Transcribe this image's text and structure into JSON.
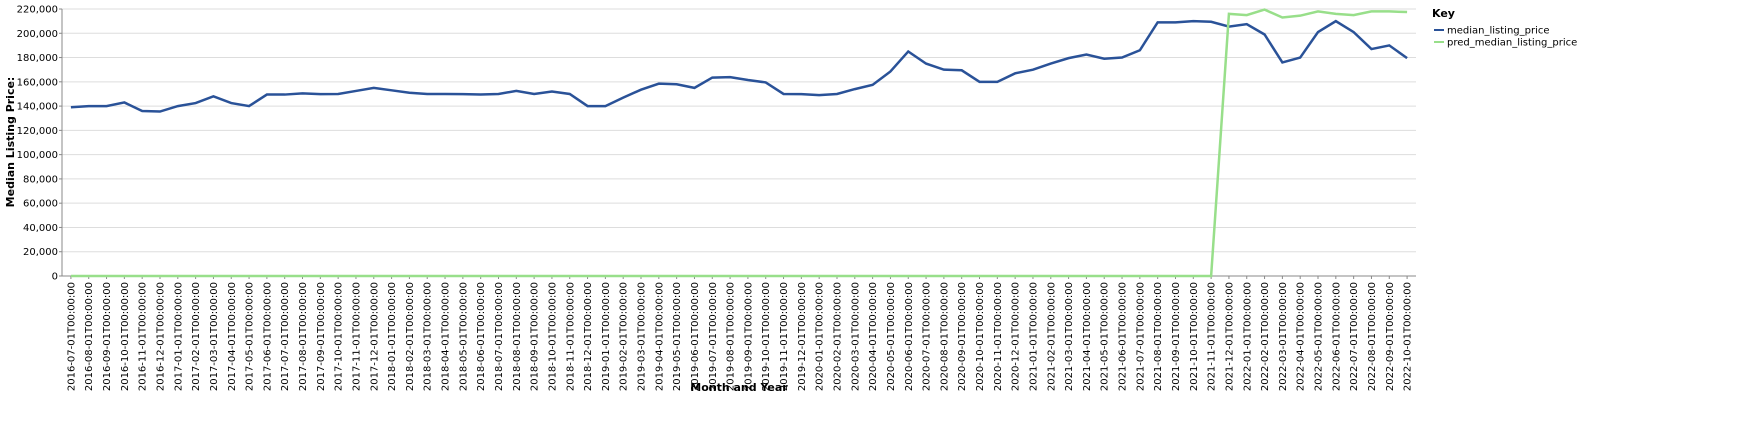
{
  "chart_data": {
    "type": "line",
    "x_label": "Month and Year",
    "y_label": "Median Listing Price:",
    "legend_title": "Key",
    "legend_position": "right",
    "grid": true,
    "categories": [
      "2016-07-01T00:00:00",
      "2016-08-01T00:00:00",
      "2016-09-01T00:00:00",
      "2016-10-01T00:00:00",
      "2016-11-01T00:00:00",
      "2016-12-01T00:00:00",
      "2017-01-01T00:00:00",
      "2017-02-01T00:00:00",
      "2017-03-01T00:00:00",
      "2017-04-01T00:00:00",
      "2017-05-01T00:00:00",
      "2017-06-01T00:00:00",
      "2017-07-01T00:00:00",
      "2017-08-01T00:00:00",
      "2017-09-01T00:00:00",
      "2017-10-01T00:00:00",
      "2017-11-01T00:00:00",
      "2017-12-01T00:00:00",
      "2018-01-01T00:00:00",
      "2018-02-01T00:00:00",
      "2018-03-01T00:00:00",
      "2018-04-01T00:00:00",
      "2018-05-01T00:00:00",
      "2018-06-01T00:00:00",
      "2018-07-01T00:00:00",
      "2018-08-01T00:00:00",
      "2018-09-01T00:00:00",
      "2018-10-01T00:00:00",
      "2018-11-01T00:00:00",
      "2018-12-01T00:00:00",
      "2019-01-01T00:00:00",
      "2019-02-01T00:00:00",
      "2019-03-01T00:00:00",
      "2019-04-01T00:00:00",
      "2019-05-01T00:00:00",
      "2019-06-01T00:00:00",
      "2019-07-01T00:00:00",
      "2019-08-01T00:00:00",
      "2019-09-01T00:00:00",
      "2019-10-01T00:00:00",
      "2019-11-01T00:00:00",
      "2019-12-01T00:00:00",
      "2020-01-01T00:00:00",
      "2020-02-01T00:00:00",
      "2020-03-01T00:00:00",
      "2020-04-01T00:00:00",
      "2020-05-01T00:00:00",
      "2020-06-01T00:00:00",
      "2020-07-01T00:00:00",
      "2020-08-01T00:00:00",
      "2020-09-01T00:00:00",
      "2020-10-01T00:00:00",
      "2020-11-01T00:00:00",
      "2020-12-01T00:00:00",
      "2021-01-01T00:00:00",
      "2021-02-01T00:00:00",
      "2021-03-01T00:00:00",
      "2021-04-01T00:00:00",
      "2021-05-01T00:00:00",
      "2021-06-01T00:00:00",
      "2021-07-01T00:00:00",
      "2021-08-01T00:00:00",
      "2021-09-01T00:00:00",
      "2021-10-01T00:00:00",
      "2021-11-01T00:00:00",
      "2021-12-01T00:00:00",
      "2022-01-01T00:00:00",
      "2022-02-01T00:00:00",
      "2022-03-01T00:00:00",
      "2022-04-01T00:00:00",
      "2022-05-01T00:00:00",
      "2022-06-01T00:00:00",
      "2022-07-01T00:00:00",
      "2022-08-01T00:00:00",
      "2022-09-01T00:00:00",
      "2022-10-01T00:00:00"
    ],
    "series": [
      {
        "name": "median_listing_price",
        "color": "#2a5298",
        "values": [
          139000,
          140000,
          140000,
          143000,
          136000,
          135500,
          140000,
          142500,
          148000,
          142500,
          140000,
          149500,
          149500,
          150500,
          149900,
          150000,
          152500,
          155000,
          153000,
          151000,
          150000,
          150000,
          149900,
          149500,
          150000,
          152500,
          150000,
          152000,
          150000,
          140000,
          140000,
          147000,
          153500,
          158500,
          158000,
          155000,
          163500,
          163900,
          161500,
          159500,
          150000,
          149900,
          149000,
          150000,
          154000,
          157500,
          168500,
          185000,
          175000,
          170000,
          169500,
          160000,
          160000,
          167000,
          170000,
          175000,
          179500,
          182500,
          179000,
          180000,
          186000,
          209000,
          209000,
          210000,
          209500,
          205500,
          207500,
          199000,
          176000,
          180000,
          201000,
          210000,
          201000,
          187000,
          190000,
          179500
        ]
      },
      {
        "name": "pred_median_listing_price",
        "color": "#98df8a",
        "values": [
          0,
          0,
          0,
          0,
          0,
          0,
          0,
          0,
          0,
          0,
          0,
          0,
          0,
          0,
          0,
          0,
          0,
          0,
          0,
          0,
          0,
          0,
          0,
          0,
          0,
          0,
          0,
          0,
          0,
          0,
          0,
          0,
          0,
          0,
          0,
          0,
          0,
          0,
          0,
          0,
          0,
          0,
          0,
          0,
          0,
          0,
          0,
          0,
          0,
          0,
          0,
          0,
          0,
          0,
          0,
          0,
          0,
          0,
          0,
          0,
          0,
          0,
          0,
          0,
          0,
          216000,
          215000,
          219500,
          213000,
          214500,
          218000,
          216000,
          215000,
          218000,
          218000,
          217500
        ]
      }
    ],
    "ylim": [
      0,
      220000
    ],
    "yticks": [
      0,
      {
        "value": 20000,
        "label": "20,000"
      },
      {
        "value": 40000,
        "label": "40,000"
      },
      {
        "value": 60000,
        "label": "60,000"
      },
      {
        "value": 80000,
        "label": "80,000"
      },
      {
        "value": 100000,
        "label": "100,000"
      },
      {
        "value": 120000,
        "label": "120,000"
      },
      {
        "value": 140000,
        "label": "140,000"
      },
      {
        "value": 160000,
        "label": "160,000"
      },
      {
        "value": 180000,
        "label": "180,000"
      },
      {
        "value": 200000,
        "label": "200,000"
      },
      {
        "value": 220000,
        "label": "220,000"
      }
    ]
  }
}
